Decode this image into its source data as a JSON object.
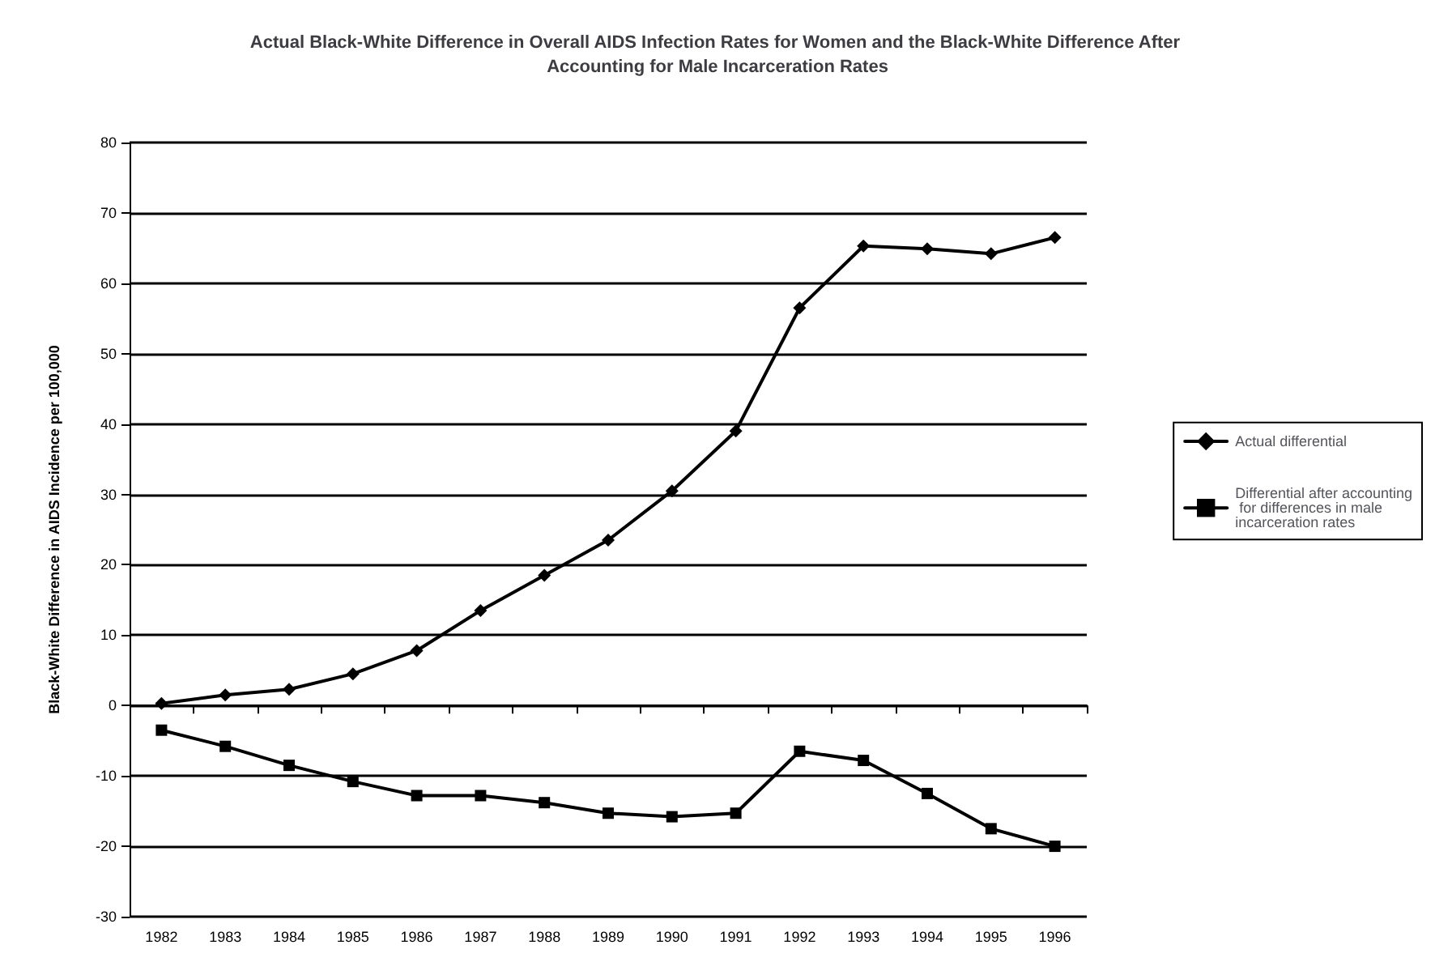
{
  "chart_data": {
    "type": "line",
    "title": "Actual Black-White Difference in Overall AIDS Infection Rates for Women and the Black-White Difference After Accounting for Male Incarceration Rates",
    "ylabel": "Black-White Difference in AIDS Incidence per 100,000",
    "categories": [
      "1982",
      "1983",
      "1984",
      "1985",
      "1986",
      "1987",
      "1988",
      "1989",
      "1990",
      "1991",
      "1992",
      "1993",
      "1994",
      "1995",
      "1996"
    ],
    "series": [
      {
        "name": "Actual differential",
        "color": "#000000",
        "marker": "diamond",
        "values": [
          0.3,
          1.5,
          2.3,
          4.5,
          7.8,
          13.5,
          18.5,
          23.5,
          30.5,
          39,
          56.5,
          65.3,
          64.9,
          64.2,
          66.5
        ]
      },
      {
        "name": "Differential after accounting for differences in male incarceration rates",
        "color": "#000000",
        "marker": "square",
        "values": [
          -3.5,
          -5.8,
          -8.5,
          -10.8,
          -12.8,
          -12.8,
          -13.8,
          -15.3,
          -15.8,
          -15.3,
          -6.5,
          -7.8,
          -12.5,
          -17.5,
          -20
        ]
      }
    ],
    "ylim": [
      -30,
      80
    ],
    "yticks": [
      -30,
      -20,
      -10,
      0,
      10,
      20,
      30,
      40,
      50,
      60,
      70,
      80
    ],
    "grid": "y",
    "legend": "right",
    "line_style": "solid"
  }
}
